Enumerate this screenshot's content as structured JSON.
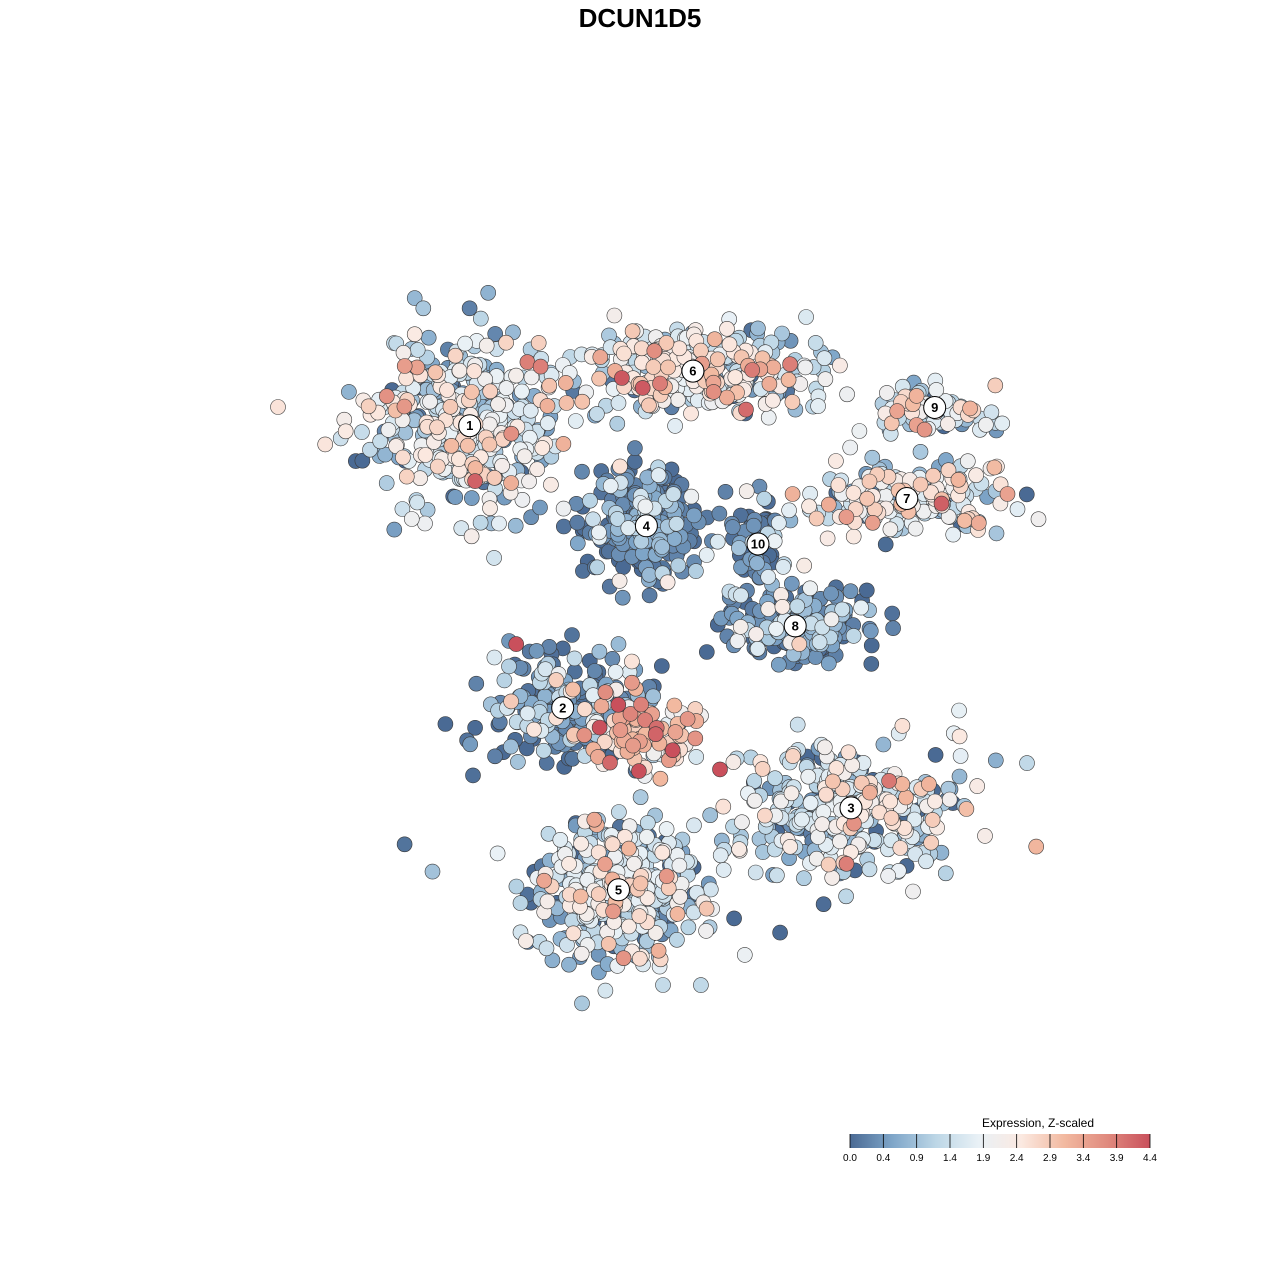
{
  "chart_data": {
    "type": "scatter",
    "title": "DCUN1D5",
    "xlabel": "",
    "ylabel": "",
    "grid": false,
    "legend_position": "bottom-right",
    "legend": {
      "title": "Expression, Z-scaled",
      "ticks": [
        "0.0",
        "0.4",
        "0.9",
        "1.4",
        "1.9",
        "2.4",
        "2.9",
        "3.4",
        "3.9",
        "4.4"
      ],
      "range": [
        0.0,
        4.4
      ],
      "colors": [
        "#4a6a94",
        "#7fa6c9",
        "#bcd6e6",
        "#e9f1f6",
        "#fbe9e1",
        "#f2b9a0",
        "#e08a7e",
        "#c9505c"
      ]
    },
    "clusters": [
      {
        "id": "1",
        "x": 0.29,
        "y": 0.73,
        "spread_x": 0.11,
        "spread_y": 0.1,
        "n": 420,
        "mean_expr": 1.6
      },
      {
        "id": "2",
        "x": 0.39,
        "y": 0.42,
        "spread_x": 0.09,
        "spread_y": 0.06,
        "n": 220,
        "mean_expr": 0.9
      },
      {
        "id": "3",
        "x": 0.7,
        "y": 0.31,
        "spread_x": 0.12,
        "spread_y": 0.07,
        "n": 360,
        "mean_expr": 1.5
      },
      {
        "id": "4",
        "x": 0.48,
        "y": 0.62,
        "spread_x": 0.06,
        "spread_y": 0.06,
        "n": 280,
        "mean_expr": 0.4
      },
      {
        "id": "5",
        "x": 0.45,
        "y": 0.22,
        "spread_x": 0.09,
        "spread_y": 0.08,
        "n": 420,
        "mean_expr": 1.3
      },
      {
        "id": "6",
        "x": 0.53,
        "y": 0.79,
        "spread_x": 0.12,
        "spread_y": 0.05,
        "n": 320,
        "mean_expr": 1.8
      },
      {
        "id": "7",
        "x": 0.76,
        "y": 0.65,
        "spread_x": 0.11,
        "spread_y": 0.04,
        "n": 180,
        "mean_expr": 1.9
      },
      {
        "id": "8",
        "x": 0.64,
        "y": 0.51,
        "spread_x": 0.07,
        "spread_y": 0.04,
        "n": 230,
        "mean_expr": 0.6
      },
      {
        "id": "9",
        "x": 0.79,
        "y": 0.75,
        "spread_x": 0.07,
        "spread_y": 0.03,
        "n": 90,
        "mean_expr": 1.5
      },
      {
        "id": "10",
        "x": 0.6,
        "y": 0.6,
        "spread_x": 0.03,
        "spread_y": 0.04,
        "n": 60,
        "mean_expr": 0.7
      },
      {
        "id": "hotspot",
        "label": "",
        "x": 0.47,
        "y": 0.39,
        "spread_x": 0.08,
        "spread_y": 0.04,
        "n": 120,
        "mean_expr": 2.7
      }
    ],
    "outliers": [
      {
        "x": 0.34,
        "y": 0.49,
        "expr": 4.4
      },
      {
        "x": 0.4,
        "y": 0.5,
        "expr": 0.1
      },
      {
        "x": 0.45,
        "y": 0.49,
        "expr": 0.9
      },
      {
        "x": 0.22,
        "y": 0.27,
        "expr": 0.1
      },
      {
        "x": 0.25,
        "y": 0.24,
        "expr": 1.0
      },
      {
        "x": 0.32,
        "y": 0.26,
        "expr": 1.9
      },
      {
        "x": 0.37,
        "y": 0.23,
        "expr": 3.4
      },
      {
        "x": 0.67,
        "y": 0.79,
        "expr": 1.2
      }
    ]
  }
}
